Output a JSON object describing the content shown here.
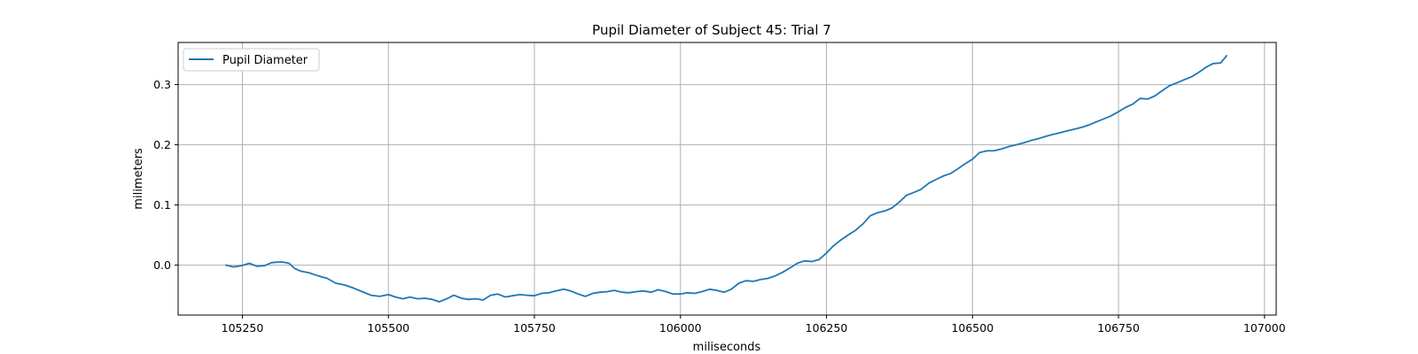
{
  "chart_data": {
    "type": "line",
    "title": "Pupil Diameter of Subject 45: Trial 7",
    "xlabel": "miliseconds",
    "ylabel": "milimeters",
    "xlim": [
      105140,
      107020
    ],
    "ylim": [
      -0.083,
      0.37
    ],
    "xticks": [
      105250,
      105500,
      105750,
      106000,
      106250,
      106500,
      106750,
      107000
    ],
    "xtick_labels": [
      "105250",
      "105500",
      "105750",
      "106000",
      "106250",
      "106500",
      "106750",
      "107000"
    ],
    "yticks": [
      0.0,
      0.1,
      0.2,
      0.3
    ],
    "ytick_labels": [
      "0.0",
      "0.1",
      "0.2",
      "0.3"
    ],
    "grid": true,
    "legend_position": "upper-left",
    "series": [
      {
        "name": "Pupil Diameter",
        "color": "#1f77b4",
        "x": [
          105222,
          105235,
          105248,
          105262,
          105275,
          105288,
          105300,
          105310,
          105320,
          105330,
          105340,
          105350,
          105365,
          105380,
          105395,
          105410,
          105425,
          105440,
          105455,
          105470,
          105485,
          105500,
          105512,
          105525,
          105537,
          105550,
          105562,
          105575,
          105587,
          105600,
          105612,
          105625,
          105637,
          105650,
          105662,
          105675,
          105687,
          105700,
          105712,
          105725,
          105737,
          105750,
          105762,
          105775,
          105787,
          105800,
          105812,
          105825,
          105837,
          105850,
          105862,
          105875,
          105887,
          105900,
          105912,
          105925,
          105937,
          105950,
          105962,
          105975,
          105987,
          106000,
          106012,
          106025,
          106037,
          106050,
          106062,
          106075,
          106087,
          106100,
          106112,
          106125,
          106137,
          106150,
          106162,
          106175,
          106187,
          106200,
          106212,
          106225,
          106237,
          106250,
          106262,
          106275,
          106287,
          106300,
          106312,
          106325,
          106337,
          106350,
          106362,
          106375,
          106387,
          106400,
          106412,
          106425,
          106437,
          106450,
          106462,
          106475,
          106487,
          106500,
          106512,
          106525,
          106537,
          106550,
          106562,
          106575,
          106587,
          106600,
          106612,
          106625,
          106637,
          106650,
          106662,
          106675,
          106687,
          106700,
          106712,
          106725,
          106737,
          106750,
          106762,
          106775,
          106787,
          106800,
          106812,
          106825,
          106837,
          106850,
          106862,
          106875,
          106887,
          106900,
          106912,
          106925,
          106935
        ],
        "y": [
          0.0,
          -0.003,
          -0.001,
          0.003,
          -0.002,
          -0.001,
          0.004,
          0.005,
          0.005,
          0.003,
          -0.006,
          -0.01,
          -0.013,
          -0.018,
          -0.022,
          -0.03,
          -0.033,
          -0.038,
          -0.044,
          -0.05,
          -0.052,
          -0.049,
          -0.053,
          -0.056,
          -0.053,
          -0.056,
          -0.055,
          -0.057,
          -0.061,
          -0.056,
          -0.05,
          -0.055,
          -0.057,
          -0.056,
          -0.058,
          -0.05,
          -0.048,
          -0.053,
          -0.051,
          -0.049,
          -0.05,
          -0.051,
          -0.047,
          -0.046,
          -0.043,
          -0.04,
          -0.043,
          -0.048,
          -0.052,
          -0.047,
          -0.045,
          -0.044,
          -0.042,
          -0.045,
          -0.046,
          -0.044,
          -0.043,
          -0.045,
          -0.041,
          -0.044,
          -0.048,
          -0.048,
          -0.046,
          -0.047,
          -0.044,
          -0.04,
          -0.042,
          -0.045,
          -0.04,
          -0.03,
          -0.026,
          -0.027,
          -0.024,
          -0.022,
          -0.018,
          -0.012,
          -0.005,
          0.003,
          0.007,
          0.006,
          0.009,
          0.02,
          0.032,
          0.042,
          0.05,
          0.058,
          0.068,
          0.082,
          0.087,
          0.09,
          0.095,
          0.105,
          0.116,
          0.121,
          0.126,
          0.136,
          0.142,
          0.148,
          0.152,
          0.16,
          0.168,
          0.176,
          0.187,
          0.19,
          0.19,
          0.193,
          0.197,
          0.2,
          0.203,
          0.207,
          0.21,
          0.214,
          0.217,
          0.22,
          0.223,
          0.226,
          0.229,
          0.233,
          0.238,
          0.243,
          0.248,
          0.255,
          0.262,
          0.268,
          0.277,
          0.276,
          0.281,
          0.29,
          0.298,
          0.303,
          0.308,
          0.313,
          0.32,
          0.329,
          0.335,
          0.336,
          0.348
        ]
      }
    ]
  }
}
